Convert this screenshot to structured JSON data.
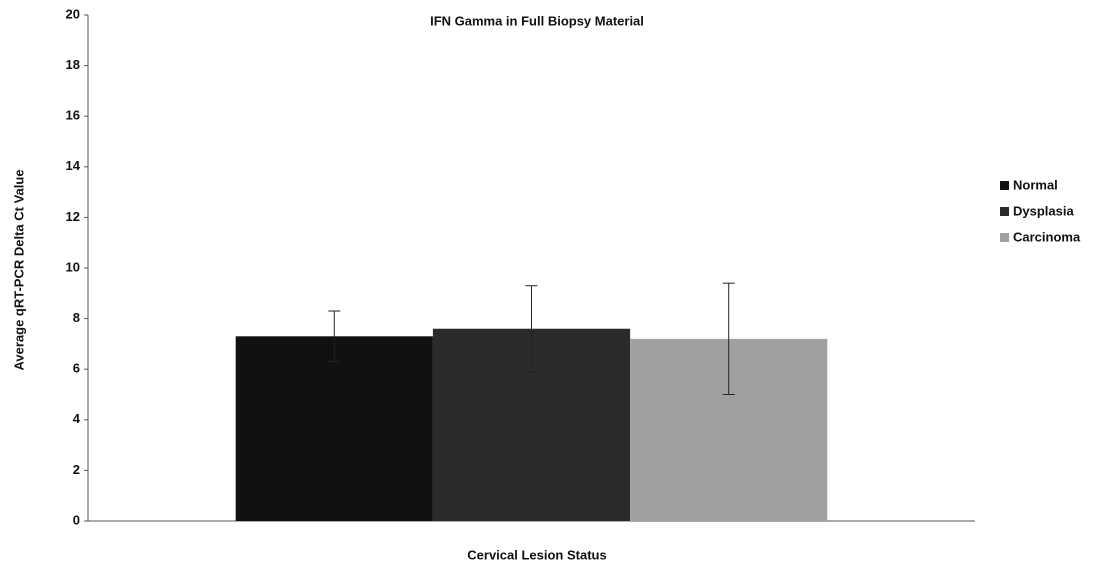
{
  "chart_data": {
    "type": "bar",
    "title": "IFN Gamma in Full Biopsy Material",
    "xlabel": "Cervical Lesion Status",
    "ylabel": "Average qRT-PCR Delta Ct Value",
    "categories": [
      null
    ],
    "series": [
      {
        "name": "Normal",
        "color": "#111111",
        "values": [
          7.3
        ],
        "errors": [
          1.0
        ]
      },
      {
        "name": "Dysplasia",
        "color": "#2b2b2b",
        "values": [
          7.6
        ],
        "errors": [
          1.7
        ]
      },
      {
        "name": "Carcinoma",
        "color": "#a0a0a0",
        "values": [
          7.2
        ],
        "errors": [
          2.2
        ]
      }
    ],
    "ylim": [
      0,
      20
    ],
    "yticks": [
      0,
      2,
      4,
      6,
      8,
      10,
      12,
      14,
      16,
      18,
      20
    ],
    "grid": false,
    "legend": "right"
  }
}
